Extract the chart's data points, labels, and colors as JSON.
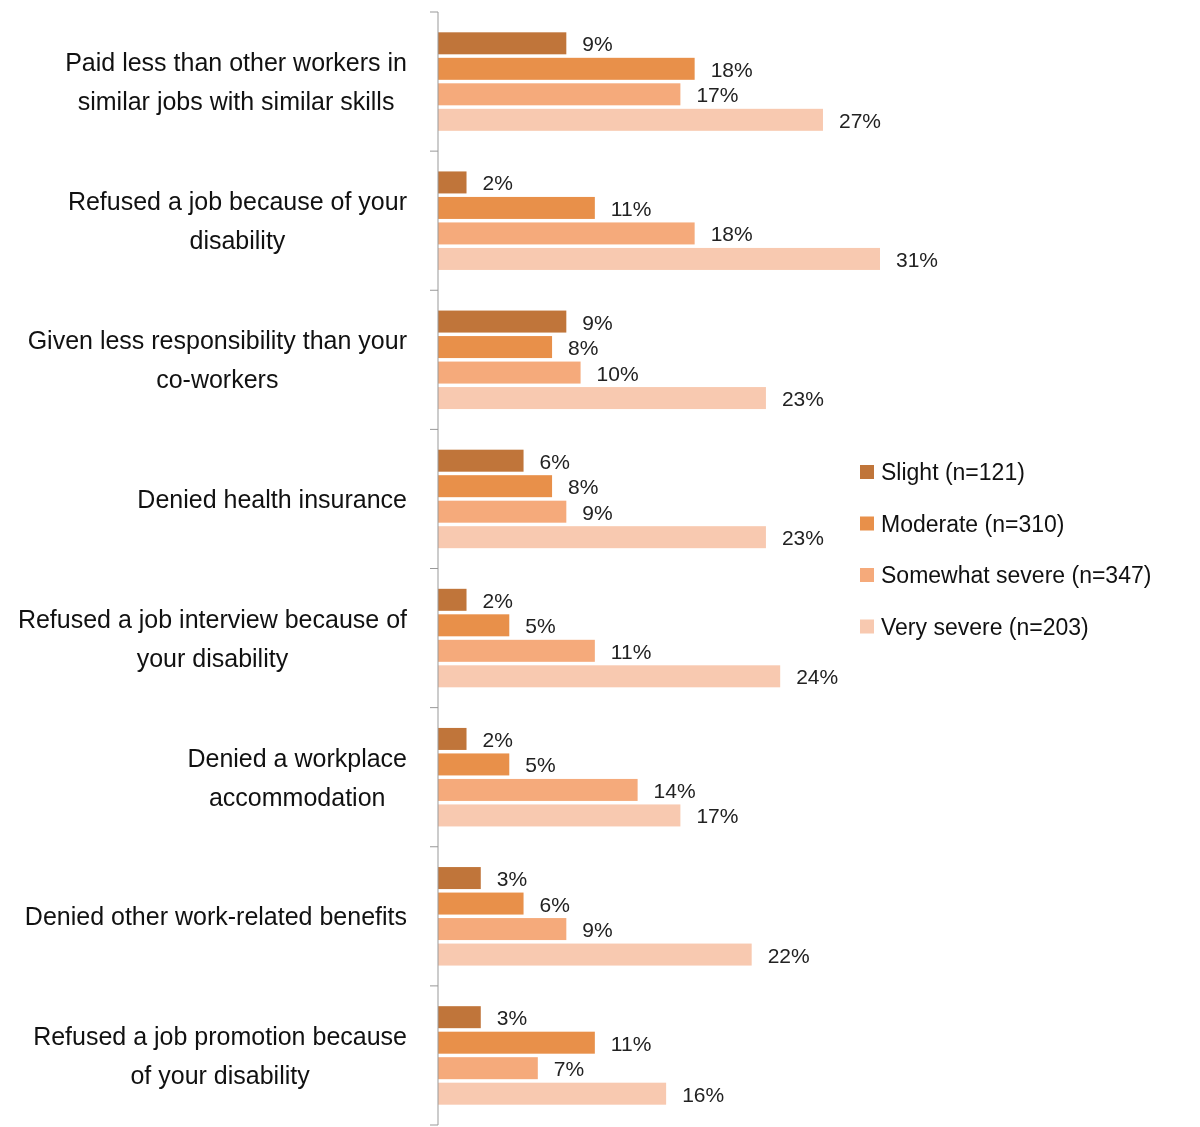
{
  "chart_data": {
    "type": "bar",
    "orientation": "horizontal",
    "legend": "right",
    "categories": [
      "Paid less than other workers in similar jobs with similar skills",
      "Refused a job because of your disability",
      "Given less responsibility than your co-workers",
      "Denied health insurance",
      "Refused a job interview because of your disability",
      "Denied a workplace accommodation",
      "Denied other work-related benefits",
      "Refused a job promotion because of your disability"
    ],
    "series": [
      {
        "name": "Slight (n=121)",
        "color": "#c0753a",
        "values": [
          9,
          2,
          9,
          6,
          2,
          2,
          3,
          3
        ],
        "value_labels": [
          "9%",
          "2%",
          "9%",
          "6%",
          "2%",
          "2%",
          "3%",
          "3%"
        ]
      },
      {
        "name": "Moderate (n=310)",
        "color": "#e8904a",
        "values": [
          18,
          11,
          8,
          8,
          5,
          5,
          6,
          11
        ],
        "value_labels": [
          "18%",
          "11%",
          "8%",
          "8%",
          "5%",
          "5%",
          "6%",
          "11%"
        ]
      },
      {
        "name": "Somewhat severe (n=347)",
        "color": "#f5aa7b",
        "values": [
          17,
          18,
          10,
          9,
          11,
          14,
          9,
          7
        ],
        "value_labels": [
          "17%",
          "18%",
          "10%",
          "9%",
          "11%",
          "14%",
          "9%",
          "7%"
        ]
      },
      {
        "name": "Very severe (n=203)",
        "color": "#f8c9b0",
        "values": [
          27,
          31,
          23,
          23,
          24,
          17,
          22,
          16
        ],
        "value_labels": [
          "27%",
          "31%",
          "23%",
          "23%",
          "24%",
          "17%",
          "22%",
          "16%"
        ]
      }
    ]
  }
}
